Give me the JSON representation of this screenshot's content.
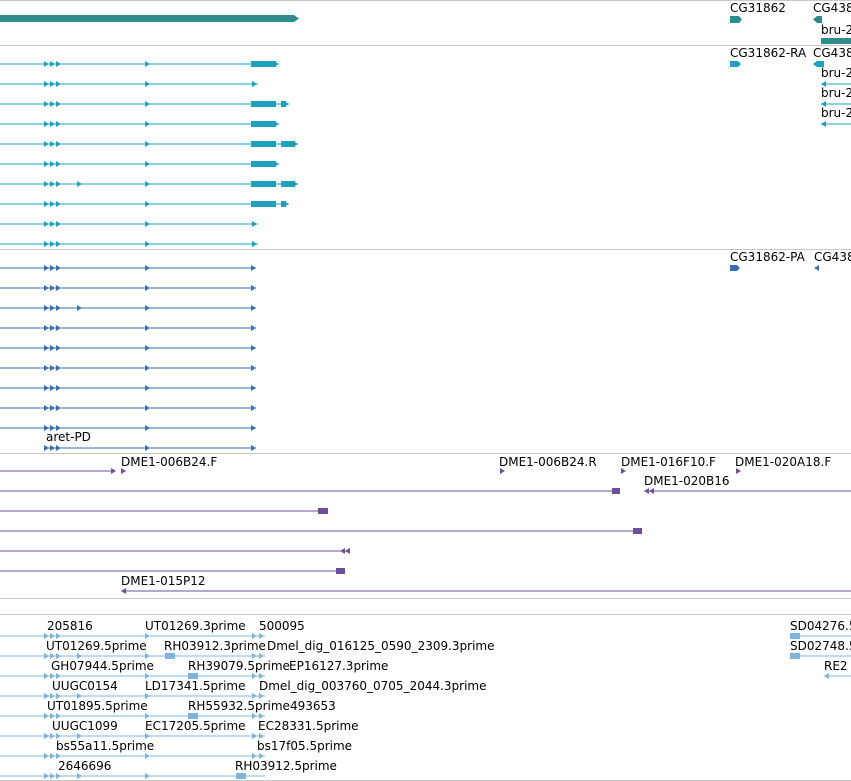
{
  "colors": {
    "gene": "#2e8c8c",
    "mrna": "#1fa0bf",
    "cds": "#3b6fb4",
    "clone": "#6e4f9a",
    "est": "#80b4dc",
    "separator": "#c8c8c8",
    "text": "#000000"
  },
  "tracks": {
    "gene": {
      "labels": [
        "CG31862",
        "CG438",
        "bru-2"
      ]
    },
    "mrna": {
      "labels": [
        "CG31862-RA",
        "CG438",
        "bru-2",
        "bru-2",
        "bru-2"
      ]
    },
    "cds": {
      "labels": [
        "CG31862-PA",
        "CG438",
        "aret-PD"
      ]
    },
    "clones": {
      "labels": [
        "DME1-006B24.F",
        "DME1-006B24.R",
        "DME1-016F10.F",
        "DME1-020A18.F",
        "DME1-020B16",
        "DME1-015P12"
      ]
    },
    "est": {
      "labels": [
        "205816",
        "UT01269.3prime",
        "500095",
        "SD04276.5",
        "UT01269.5prime",
        "RH03912.3prime",
        "Dmel_dig_016125_0590_2309.3prime",
        "SD02748.5",
        "GH07944.5prime",
        "RH39079.5prime",
        "EP16127.3prime",
        "RE2",
        "UUGC0154",
        "LD17341.5prime",
        "Dmel_dig_003760_0705_2044.3prime",
        "UT01895.5prime",
        "RH55932.5prime",
        "493653",
        "UUGC1099",
        "EC17205.5prime",
        "EC28331.5prime",
        "bs55a11.5prime",
        "bs17f05.5prime",
        "2646696",
        "RH03912.5prime"
      ]
    }
  }
}
